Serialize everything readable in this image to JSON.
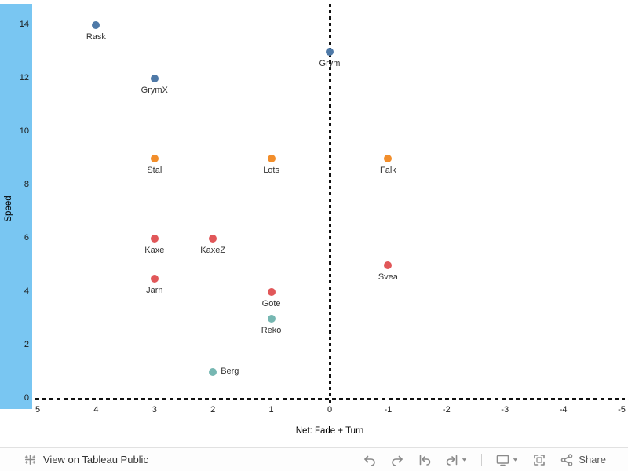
{
  "chart_data": {
    "type": "scatter",
    "title": "",
    "xlabel": "Net: Fade + Turn",
    "ylabel": "Speed",
    "x_ticks": [
      5,
      4,
      3,
      2,
      1,
      0,
      -1,
      -2,
      -3,
      -4,
      -5
    ],
    "y_ticks": [
      0,
      2,
      4,
      6,
      8,
      10,
      12,
      14
    ],
    "x_range": [
      5,
      -5
    ],
    "y_range": [
      0,
      14
    ],
    "x_axis_reversed": true,
    "legend": "none",
    "grid": "off",
    "reference_lines": {
      "vertical_x": 0,
      "horizontal_y": 0
    },
    "points": [
      {
        "label": "Rask",
        "x": 4,
        "y": 14,
        "color": "#4e79a7",
        "label_pos": "below"
      },
      {
        "label": "Grym",
        "x": 0,
        "y": 13,
        "color": "#4e79a7",
        "label_pos": "below"
      },
      {
        "label": "GrymX",
        "x": 3,
        "y": 12,
        "color": "#4e79a7",
        "label_pos": "below"
      },
      {
        "label": "Stal",
        "x": 3,
        "y": 9,
        "color": "#f28e2b",
        "label_pos": "below"
      },
      {
        "label": "Lots",
        "x": 1,
        "y": 9,
        "color": "#f28e2b",
        "label_pos": "below"
      },
      {
        "label": "Falk",
        "x": -1,
        "y": 9,
        "color": "#f28e2b",
        "label_pos": "below"
      },
      {
        "label": "Kaxe",
        "x": 3,
        "y": 6,
        "color": "#e15759",
        "label_pos": "below"
      },
      {
        "label": "KaxeZ",
        "x": 2,
        "y": 6,
        "color": "#e15759",
        "label_pos": "below"
      },
      {
        "label": "Jarn",
        "x": 3,
        "y": 4.5,
        "color": "#e15759",
        "label_pos": "below"
      },
      {
        "label": "Svea",
        "x": -1,
        "y": 5,
        "color": "#e15759",
        "label_pos": "below"
      },
      {
        "label": "Gote",
        "x": 1,
        "y": 4,
        "color": "#e15759",
        "label_pos": "below"
      },
      {
        "label": "Reko",
        "x": 1,
        "y": 3,
        "color": "#76b7b2",
        "label_pos": "below"
      },
      {
        "label": "Berg",
        "x": 2,
        "y": 1,
        "color": "#76b7b2",
        "label_pos": "right"
      }
    ]
  },
  "colors": {
    "axis_band": "#79c6f2",
    "blue": "#4e79a7",
    "orange": "#f28e2b",
    "red": "#e15759",
    "teal": "#76b7b2",
    "reference_line": "#111111"
  },
  "toolbar": {
    "view_label": "View on Tableau Public",
    "share_label": "Share",
    "icons": {
      "logo": "tableau-logo",
      "undo": "Undo",
      "redo": "Redo",
      "replay_back": "Replay back",
      "replay_forward": "Replay forward",
      "download": "Download",
      "fullscreen": "Full Screen",
      "share": "Share"
    }
  }
}
